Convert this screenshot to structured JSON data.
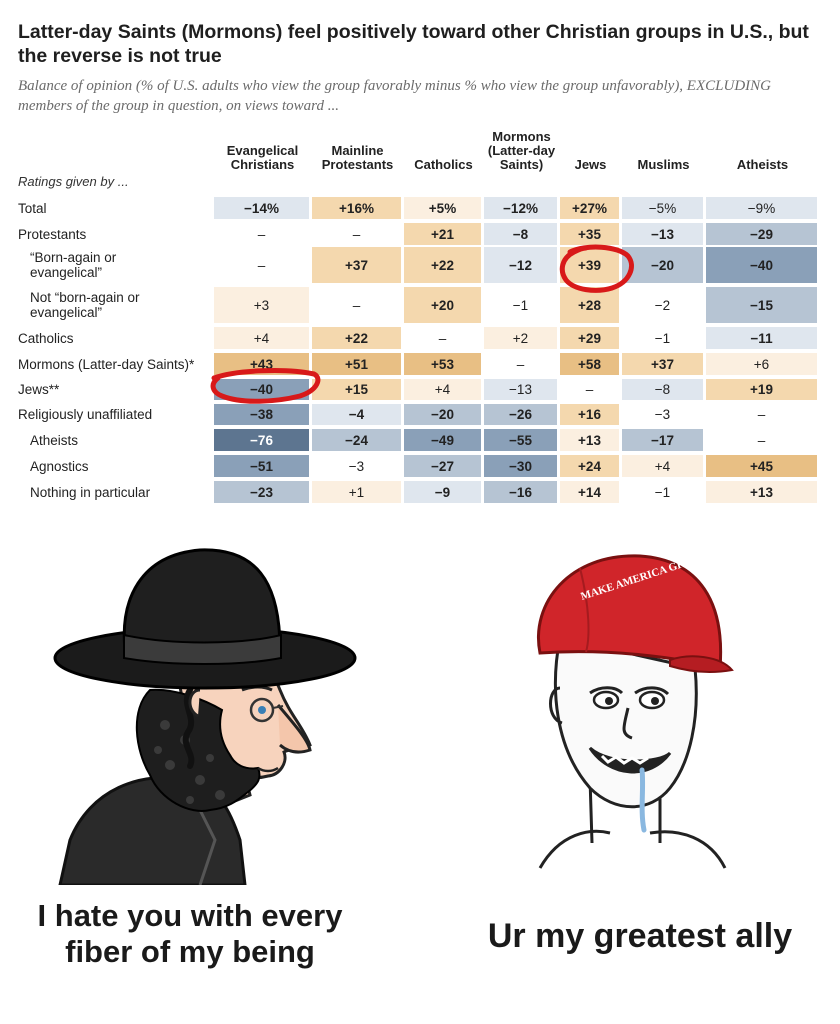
{
  "chart": {
    "title": "Latter-day Saints (Mormons) feel positively toward other Christian groups in U.S., but the reverse is not true",
    "subtitle": "Balance of opinion (% of U.S. adults who view the group favorably minus % who view the group unfavorably), EXCLUDING members of the group in question, on views toward ...",
    "ratings_label": "Ratings given by ...",
    "columns": [
      "Evangelical\nChristians",
      "Mainline\nProtestants",
      "Catholics",
      "Mormons\n(Latter-day\nSaints)",
      "Jews",
      "Muslims",
      "Atheists"
    ],
    "rows": [
      {
        "label": "Total",
        "indent": false,
        "values": [
          "−14%",
          "+16%",
          "+5%",
          "−12%",
          "+27%",
          "−5%",
          "−9%"
        ]
      },
      {
        "label": "Protestants",
        "indent": false,
        "values": [
          "–",
          "–",
          "+21",
          "−8",
          "+35",
          "−13",
          "−29"
        ]
      },
      {
        "label": "“Born-again or\nevangelical”",
        "indent": true,
        "values": [
          "–",
          "+37",
          "+22",
          "−12",
          "+39",
          "−20",
          "−40"
        ]
      },
      {
        "label": "Not “born-again or\nevangelical”",
        "indent": true,
        "values": [
          "+3",
          "–",
          "+20",
          "−1",
          "+28",
          "−2",
          "−15"
        ]
      },
      {
        "label": "Catholics",
        "indent": false,
        "values": [
          "+4",
          "+22",
          "–",
          "+2",
          "+29",
          "−1",
          "−11"
        ]
      },
      {
        "label": "Mormons (Latter-day Saints)*",
        "indent": false,
        "values": [
          "+43",
          "+51",
          "+53",
          "–",
          "+58",
          "+37",
          "+6"
        ]
      },
      {
        "label": "Jews**",
        "indent": false,
        "values": [
          "−40",
          "+15",
          "+4",
          "−13",
          "–",
          "−8",
          "+19"
        ]
      },
      {
        "label": "Religiously unaffiliated",
        "indent": false,
        "values": [
          "−38",
          "−4",
          "−20",
          "−26",
          "+16",
          "−3",
          "–"
        ]
      },
      {
        "label": "Atheists",
        "indent": true,
        "values": [
          "−76",
          "−24",
          "−49",
          "−55",
          "+13",
          "−17",
          "–"
        ]
      },
      {
        "label": "Agnostics",
        "indent": true,
        "values": [
          "−51",
          "−3",
          "−27",
          "−30",
          "+24",
          "+4",
          "+45"
        ]
      },
      {
        "label": "Nothing in particular",
        "indent": true,
        "values": [
          "−23",
          "+1",
          "−9",
          "−16",
          "+14",
          "−1",
          "+13"
        ]
      }
    ],
    "bold_cells": [
      [
        1,
        1,
        1,
        1,
        1,
        0,
        0
      ],
      [
        0,
        0,
        1,
        1,
        1,
        1,
        1
      ],
      [
        0,
        1,
        1,
        1,
        1,
        1,
        1
      ],
      [
        0,
        0,
        1,
        0,
        1,
        0,
        1
      ],
      [
        0,
        1,
        0,
        0,
        1,
        0,
        1
      ],
      [
        1,
        1,
        1,
        0,
        1,
        1,
        0
      ],
      [
        1,
        1,
        0,
        0,
        0,
        0,
        1
      ],
      [
        1,
        1,
        1,
        1,
        1,
        0,
        0
      ],
      [
        1,
        1,
        1,
        1,
        1,
        1,
        0
      ],
      [
        1,
        0,
        1,
        1,
        1,
        0,
        1
      ],
      [
        1,
        0,
        1,
        1,
        1,
        0,
        1
      ]
    ],
    "colors": {
      "positive_light": "#fbefe0",
      "positive_mid": "#f4d8ae",
      "positive_strong": "#e8bf84",
      "negative_light": "#dfe6ee",
      "negative_mid": "#b6c4d3",
      "negative_strong": "#8aa0b8",
      "negative_darkest": "#5d7590",
      "annotation_red": "#d81919"
    }
  },
  "meme": {
    "left_caption": "I hate you with every\nfiber of my being",
    "right_caption": "Ur my greatest ally",
    "hat_text": "MAKE AMERICA GREAT AGAIN",
    "left_character_icon": "hasidic-man-wojak-icon",
    "right_character_icon": "maga-wojak-icon"
  }
}
